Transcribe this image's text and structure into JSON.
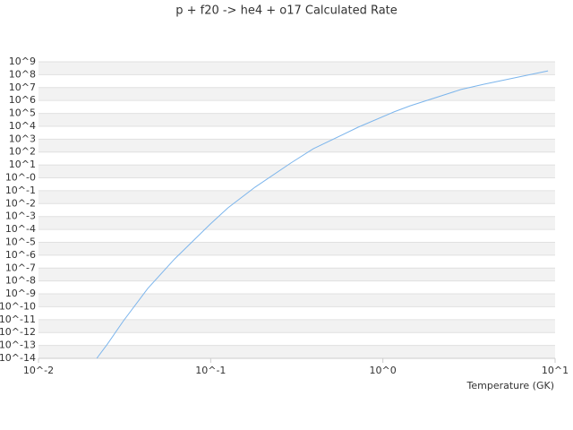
{
  "chart_data": {
    "type": "line",
    "title": "p + f20 -> he4 + o17 Calculated Rate",
    "x_label": "Temperature (GK)",
    "x_log": true,
    "y_log": true,
    "grid": true,
    "xlim": [
      0.01,
      10
    ],
    "xticks": [
      {
        "value": 0.01,
        "label": "10^-2"
      },
      {
        "value": 0.1,
        "label": "10^-1"
      },
      {
        "value": 1,
        "label": "10^0"
      },
      {
        "value": 10,
        "label": "10^1"
      }
    ],
    "ylim": [
      1e-14,
      1000000000.0
    ],
    "yticks": [
      {
        "value": 1e-14,
        "label": "10^-14"
      },
      {
        "value": 1e-13,
        "label": "10^-13"
      },
      {
        "value": 1e-12,
        "label": "10^-12"
      },
      {
        "value": 1e-11,
        "label": "10^-11"
      },
      {
        "value": 1e-10,
        "label": "10^-10"
      },
      {
        "value": 1e-09,
        "label": "10^-9"
      },
      {
        "value": 1e-08,
        "label": "10^-8"
      },
      {
        "value": 1e-07,
        "label": "10^-7"
      },
      {
        "value": 1e-06,
        "label": "10^-6"
      },
      {
        "value": 1e-05,
        "label": "10^-5"
      },
      {
        "value": 0.0001,
        "label": "10^-4"
      },
      {
        "value": 0.001,
        "label": "10^-3"
      },
      {
        "value": 0.01,
        "label": "10^-2"
      },
      {
        "value": 0.1,
        "label": "10^-1"
      },
      {
        "value": 1,
        "label": "10^-0"
      },
      {
        "value": 10,
        "label": "10^1"
      },
      {
        "value": 100,
        "label": "10^2"
      },
      {
        "value": 1000,
        "label": "10^3"
      },
      {
        "value": 10000,
        "label": "10^4"
      },
      {
        "value": 100000,
        "label": "10^5"
      },
      {
        "value": 1000000,
        "label": "10^6"
      },
      {
        "value": 10000000,
        "label": "10^7"
      },
      {
        "value": 100000000,
        "label": "10^8"
      },
      {
        "value": 1000000000,
        "label": "10^9"
      }
    ],
    "x": [
      0.0218,
      0.0251,
      0.0312,
      0.0431,
      0.0617,
      0.0995,
      0.126,
      0.181,
      0.292,
      0.394,
      0.718,
      1.16,
      1.44,
      2.84,
      3.84,
      9.1
    ],
    "series": [
      {
        "color": "#7cb5ec",
        "values": [
          1e-14,
          1.26e-13,
          8.3e-12,
          2.6e-09,
          5.1e-07,
          0.00026,
          0.0047,
          0.19,
          14,
          180,
          8500,
          130000,
          390000,
          7100000,
          18000000,
          200000000
        ]
      }
    ]
  }
}
